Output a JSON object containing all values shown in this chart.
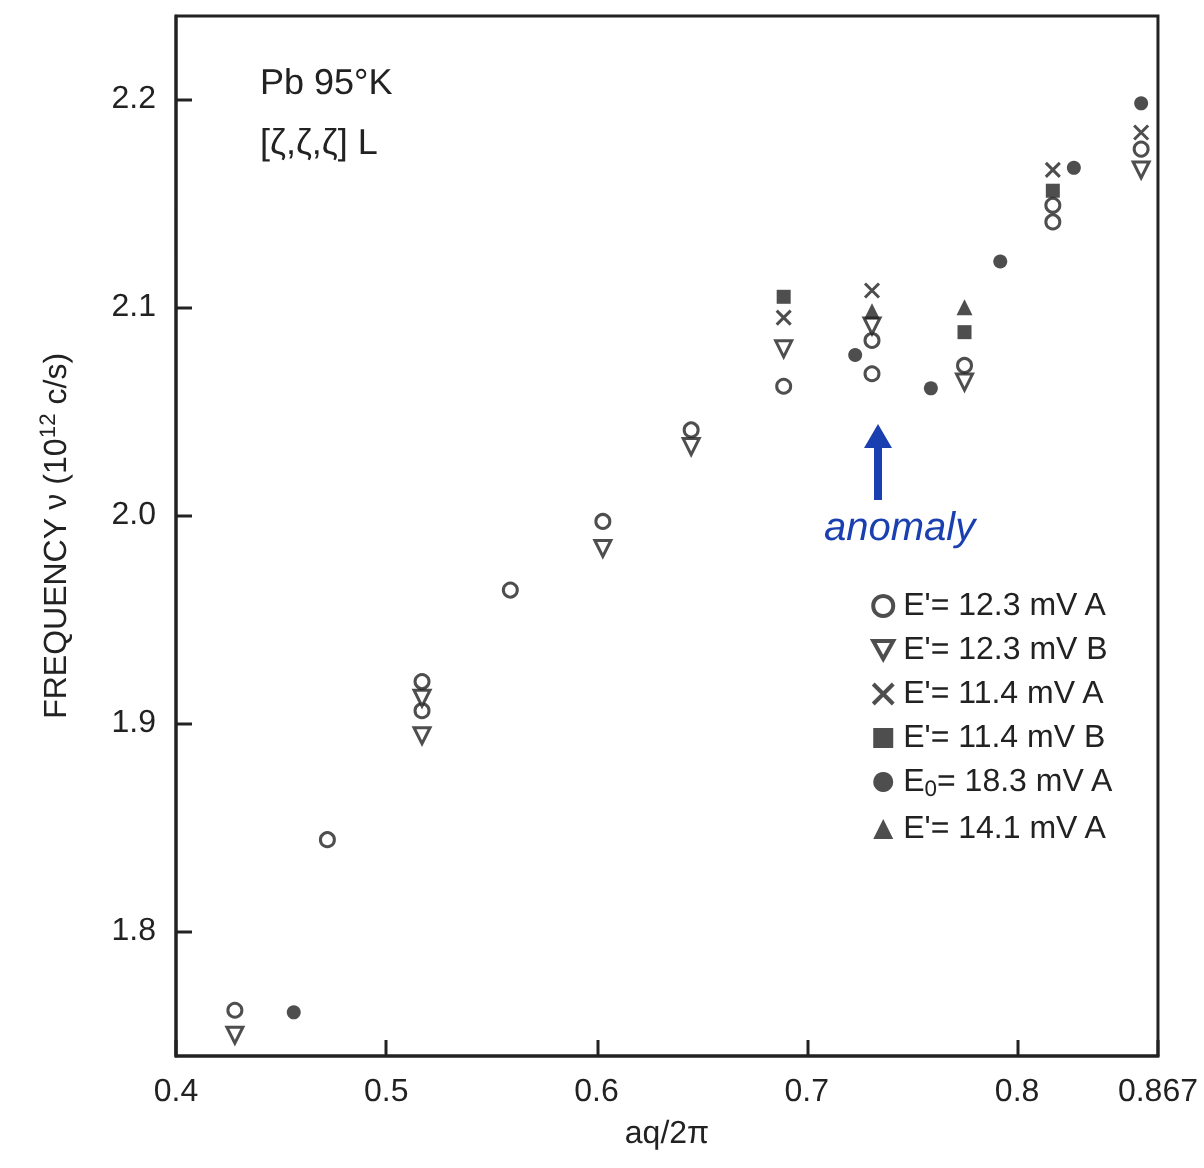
{
  "chart_data": {
    "type": "scatter",
    "xlabel": "aq/2π",
    "ylabel": "FREQUENCY ν (10$^{12}$ c/s)",
    "annotations": [
      "Pb 95°K",
      "[ζ,ζ,ζ] L",
      "anomaly"
    ],
    "xlim": [
      0.4,
      0.867
    ],
    "xticks": [
      0.4,
      0.5,
      0.6,
      0.7,
      0.8,
      0.867
    ],
    "ylim": [
      1.74,
      2.24
    ],
    "yticks": [
      1.8,
      1.9,
      {
        "value": 2,
        "label": "2.0"
      },
      2.1,
      2.2
    ],
    "grid": false,
    "legend": "right",
    "series": [
      {
        "name": "E'= 12.3 mV A",
        "color": "#222222",
        "marker": "circle_open",
        "x": [
          0.428,
          0.472,
          0.517,
          0.517,
          0.559,
          0.603,
          0.645,
          0.689,
          0.731,
          0.731,
          0.775,
          0.817,
          0.817,
          0.859
        ],
        "values": [
          1.762,
          1.844,
          1.92,
          1.906,
          1.964,
          1.997,
          2.041,
          2.062,
          2.084,
          2.068,
          2.072,
          2.149,
          2.141,
          2.176
        ]
      },
      {
        "name": "E'= 12.3 mV B",
        "color": "#222222",
        "marker": "triangle_down_open",
        "x": [
          0.428,
          0.517,
          0.517,
          0.603,
          0.645,
          0.689,
          0.731,
          0.775,
          0.859
        ],
        "values": [
          1.75,
          1.912,
          1.894,
          1.984,
          2.033,
          2.08,
          2.091,
          2.064,
          2.166
        ]
      },
      {
        "name": "E'= 11.4 mV A",
        "color": "#222222",
        "marker": "cross",
        "x": [
          0.689,
          0.731,
          0.817,
          0.859
        ],
        "values": [
          2.095,
          2.108,
          2.166,
          2.184
        ]
      },
      {
        "name": "E'= 11.4 mV B",
        "color": "#222222",
        "marker": "square",
        "x": [
          0.689,
          0.775,
          0.817
        ],
        "values": [
          2.105,
          2.088,
          2.156
        ]
      },
      {
        "name": "E$_{0}$= 18.3 mV A",
        "color": "#222222",
        "marker": "circle",
        "x": [
          0.456,
          0.723,
          0.759,
          0.792,
          0.827,
          0.859
        ],
        "values": [
          1.761,
          2.077,
          2.061,
          2.122,
          2.167,
          2.198
        ]
      },
      {
        "name": "E'= 14.1 mV A",
        "color": "#222222",
        "marker": "triangle",
        "x": [
          0.731,
          0.775
        ],
        "values": [
          2.098,
          2.1
        ]
      }
    ]
  }
}
